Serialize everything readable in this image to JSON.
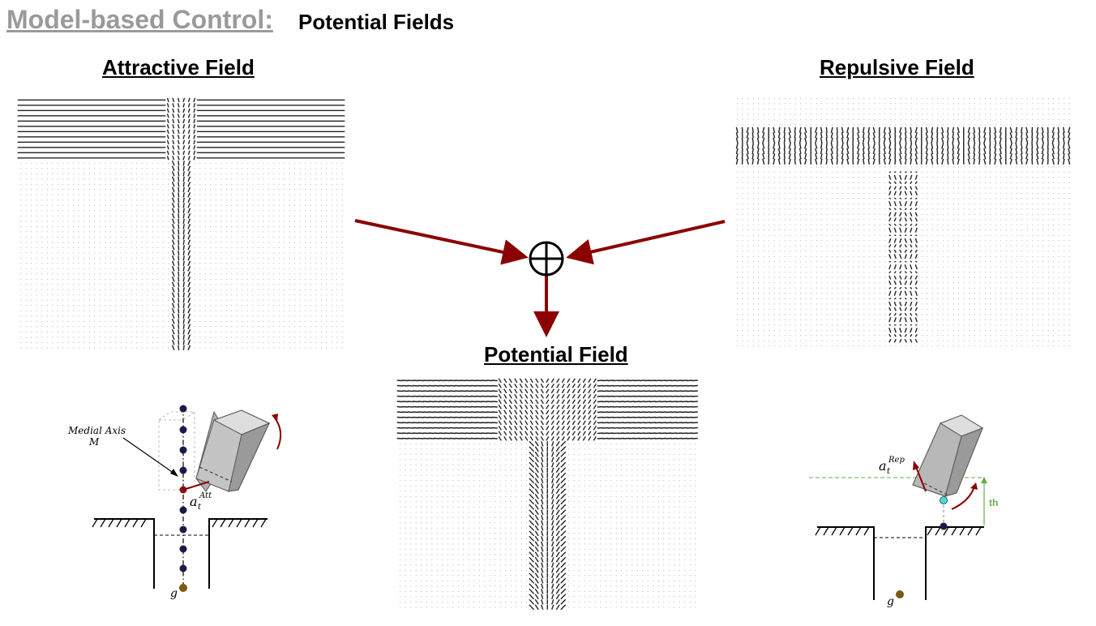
{
  "header": {
    "title": "Model-based Control:",
    "subtitle": "Potential Fields"
  },
  "fields": {
    "attractive": {
      "title": "Attractive Field"
    },
    "repulsive": {
      "title": "Repulsive Field"
    },
    "potential": {
      "title": "Potential Field"
    }
  },
  "diagram_left": {
    "medial_axis_label": "Medial Axis",
    "medial_axis_symbol": "M",
    "action_label": "a",
    "action_subscript": "t",
    "action_superscript": "Att",
    "goal_label": "g"
  },
  "diagram_right": {
    "action_label": "a",
    "action_subscript": "t",
    "action_superscript": "Rep",
    "threshold_label": "th",
    "goal_label": "g"
  },
  "colors": {
    "arrow": "#8b0000",
    "title_gray": "#9a9a9a",
    "threshold": "#6aaa4a",
    "goal": "#7a5a10",
    "axis_point": "#1a1a4a",
    "contact_point": "#40e0e0"
  }
}
